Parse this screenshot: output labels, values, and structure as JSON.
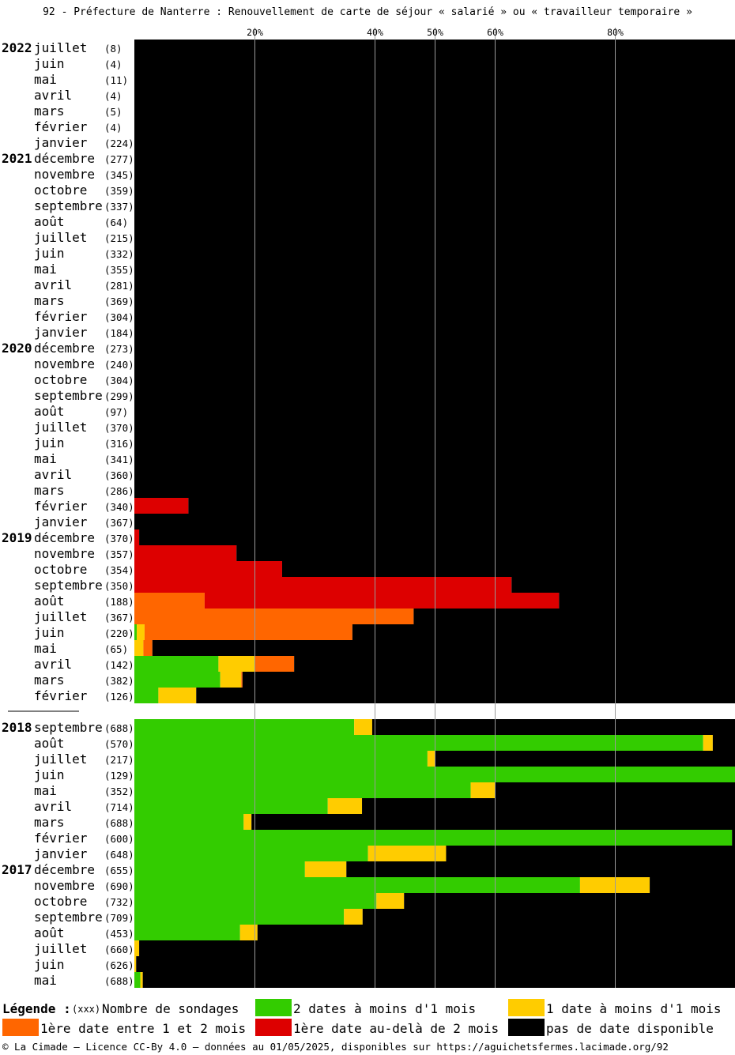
{
  "title": "92 - Préfecture de Nanterre : Renouvellement de carte de séjour « salarié » ou « travailleur temporaire »",
  "colors": {
    "green": "#33cc00",
    "yellow": "#ffcc00",
    "orange": "#ff6600",
    "red": "#dd0000",
    "black": "#000000"
  },
  "legend": {
    "title": "Légende :",
    "count_marker": "(xxx)",
    "count_label": "Nombre de sondages",
    "items": [
      {
        "color": "#33cc00",
        "label": "2 dates à moins d'1 mois"
      },
      {
        "color": "#ffcc00",
        "label": "1 date à moins d'1 mois"
      },
      {
        "color": "#ff6600",
        "label": "1ère date entre 1 et 2 mois"
      },
      {
        "color": "#dd0000",
        "label": "1ère date au-delà de 2 mois"
      },
      {
        "color": "#000000",
        "label": "pas de date disponible"
      }
    ]
  },
  "footer": "© La Cimade — Licence CC-By 4.0 — données au 01/05/2025, disponibles sur https://aguichetsfermes.lacimade.org/92",
  "chart_data": {
    "type": "bar",
    "orientation": "horizontal",
    "stacked": true,
    "x_unit": "%",
    "xlim": [
      0,
      100
    ],
    "x_ticks": [
      20,
      40,
      50,
      60,
      80
    ],
    "grid": true,
    "series_names": [
      "2 dates à moins d'1 mois",
      "1 date à moins d'1 mois",
      "1ère date entre 1 et 2 mois",
      "1ère date au-delà de 2 mois",
      "pas de date disponible"
    ],
    "groups": [
      {
        "rows": [
          {
            "year": "2022",
            "month": "juillet",
            "count": "(8)",
            "values": [
              0,
              0,
              0,
              0,
              100
            ]
          },
          {
            "year": "",
            "month": "juin",
            "count": "(4)",
            "values": [
              0,
              0,
              0,
              0,
              100
            ]
          },
          {
            "year": "",
            "month": "mai",
            "count": "(11)",
            "values": [
              0,
              0,
              0,
              0,
              100
            ]
          },
          {
            "year": "",
            "month": "avril",
            "count": "(4)",
            "values": [
              0,
              0,
              0,
              0,
              100
            ]
          },
          {
            "year": "",
            "month": "mars",
            "count": "(5)",
            "values": [
              0,
              0,
              0,
              0,
              100
            ]
          },
          {
            "year": "",
            "month": "février",
            "count": "(4)",
            "values": [
              0,
              0,
              0,
              0,
              100
            ]
          },
          {
            "year": "",
            "month": "janvier",
            "count": "(224)",
            "values": [
              0,
              0,
              0,
              0,
              100
            ]
          },
          {
            "year": "2021",
            "month": "décembre",
            "count": "(277)",
            "values": [
              0,
              0,
              0,
              0,
              100
            ]
          },
          {
            "year": "",
            "month": "novembre",
            "count": "(345)",
            "values": [
              0,
              0,
              0,
              0,
              100
            ]
          },
          {
            "year": "",
            "month": "octobre",
            "count": "(359)",
            "values": [
              0,
              0,
              0,
              0,
              100
            ]
          },
          {
            "year": "",
            "month": "septembre",
            "count": "(337)",
            "values": [
              0,
              0,
              0,
              0,
              100
            ]
          },
          {
            "year": "",
            "month": "août",
            "count": "(64)",
            "values": [
              0,
              0,
              0,
              0,
              100
            ]
          },
          {
            "year": "",
            "month": "juillet",
            "count": "(215)",
            "values": [
              0,
              0,
              0,
              0,
              100
            ]
          },
          {
            "year": "",
            "month": "juin",
            "count": "(332)",
            "values": [
              0,
              0,
              0,
              0,
              100
            ]
          },
          {
            "year": "",
            "month": "mai",
            "count": "(355)",
            "values": [
              0,
              0,
              0,
              0,
              100
            ]
          },
          {
            "year": "",
            "month": "avril",
            "count": "(281)",
            "values": [
              0,
              0,
              0,
              0,
              100
            ]
          },
          {
            "year": "",
            "month": "mars",
            "count": "(369)",
            "values": [
              0,
              0,
              0,
              0,
              100
            ]
          },
          {
            "year": "",
            "month": "février",
            "count": "(304)",
            "values": [
              0,
              0,
              0,
              0,
              100
            ]
          },
          {
            "year": "",
            "month": "janvier",
            "count": "(184)",
            "values": [
              0,
              0,
              0,
              0,
              100
            ]
          },
          {
            "year": "2020",
            "month": "décembre",
            "count": "(273)",
            "values": [
              0,
              0,
              0,
              0,
              100
            ]
          },
          {
            "year": "",
            "month": "novembre",
            "count": "(240)",
            "values": [
              0,
              0,
              0,
              0,
              100
            ]
          },
          {
            "year": "",
            "month": "octobre",
            "count": "(304)",
            "values": [
              0,
              0,
              0,
              0,
              100
            ]
          },
          {
            "year": "",
            "month": "septembre",
            "count": "(299)",
            "values": [
              0,
              0,
              0,
              0,
              100
            ]
          },
          {
            "year": "",
            "month": "août",
            "count": "(97)",
            "values": [
              0,
              0,
              0,
              0,
              100
            ]
          },
          {
            "year": "",
            "month": "juillet",
            "count": "(370)",
            "values": [
              0,
              0,
              0,
              0,
              100
            ]
          },
          {
            "year": "",
            "month": "juin",
            "count": "(316)",
            "values": [
              0,
              0,
              0,
              0,
              100
            ]
          },
          {
            "year": "",
            "month": "mai",
            "count": "(341)",
            "values": [
              0,
              0,
              0,
              0,
              100
            ]
          },
          {
            "year": "",
            "month": "avril",
            "count": "(360)",
            "values": [
              0,
              0,
              0,
              0,
              100
            ]
          },
          {
            "year": "",
            "month": "mars",
            "count": "(286)",
            "values": [
              0,
              0,
              0,
              0,
              100
            ]
          },
          {
            "year": "",
            "month": "février",
            "count": "(340)",
            "values": [
              0,
              0,
              0,
              9,
              91
            ]
          },
          {
            "year": "",
            "month": "janvier",
            "count": "(367)",
            "values": [
              0,
              0,
              0,
              0,
              100
            ]
          },
          {
            "year": "2019",
            "month": "décembre",
            "count": "(370)",
            "values": [
              0,
              0,
              0,
              0.8,
              99.2
            ]
          },
          {
            "year": "",
            "month": "novembre",
            "count": "(357)",
            "values": [
              0,
              0,
              0,
              17,
              83
            ]
          },
          {
            "year": "",
            "month": "octobre",
            "count": "(354)",
            "values": [
              0,
              0,
              0,
              24.6,
              75.4
            ]
          },
          {
            "year": "",
            "month": "septembre",
            "count": "(350)",
            "values": [
              0,
              0,
              0,
              62.8,
              37.2
            ]
          },
          {
            "year": "",
            "month": "août",
            "count": "(188)",
            "values": [
              0,
              0,
              11.7,
              59,
              29.3
            ]
          },
          {
            "year": "",
            "month": "juillet",
            "count": "(367)",
            "values": [
              0,
              0,
              46.5,
              0,
              53.5
            ]
          },
          {
            "year": "",
            "month": "juin",
            "count": "(220)",
            "values": [
              0.4,
              1.3,
              34.6,
              0,
              63.7
            ]
          },
          {
            "year": "",
            "month": "mai",
            "count": "(65)",
            "values": [
              0,
              1.5,
              1.5,
              0,
              97
            ]
          },
          {
            "year": "",
            "month": "avril",
            "count": "(142)",
            "values": [
              14,
              6,
              6.6,
              0,
              73.4
            ]
          },
          {
            "year": "",
            "month": "mars",
            "count": "(382)",
            "values": [
              14.3,
              3.5,
              0.2,
              0,
              82
            ]
          },
          {
            "year": "",
            "month": "février",
            "count": "(126)",
            "values": [
              4,
              6.3,
              0,
              0,
              89.7
            ]
          }
        ]
      },
      {
        "rows": [
          {
            "year": "2018",
            "month": "septembre",
            "count": "(688)",
            "values": [
              36.6,
              3,
              0,
              0,
              60.4
            ]
          },
          {
            "year": "",
            "month": "août",
            "count": "(570)",
            "values": [
              94.7,
              1.6,
              0,
              0,
              3.7
            ]
          },
          {
            "year": "",
            "month": "juillet",
            "count": "(217)",
            "values": [
              48.8,
              1.3,
              0,
              0,
              49.9
            ]
          },
          {
            "year": "",
            "month": "juin",
            "count": "(129)",
            "values": [
              100,
              0,
              0,
              0,
              0
            ]
          },
          {
            "year": "",
            "month": "mai",
            "count": "(352)",
            "values": [
              56,
              4,
              0,
              0,
              40
            ]
          },
          {
            "year": "",
            "month": "avril",
            "count": "(714)",
            "values": [
              32.2,
              5.7,
              0,
              0,
              62.1
            ]
          },
          {
            "year": "",
            "month": "mars",
            "count": "(688)",
            "values": [
              18.2,
              1.3,
              0,
              0,
              80.5
            ]
          },
          {
            "year": "",
            "month": "février",
            "count": "(600)",
            "values": [
              99.5,
              0,
              0,
              0,
              0.5
            ]
          },
          {
            "year": "",
            "month": "janvier",
            "count": "(648)",
            "values": [
              38.9,
              13,
              0,
              0,
              48.1
            ]
          },
          {
            "year": "2017",
            "month": "décembre",
            "count": "(655)",
            "values": [
              28.4,
              6.9,
              0,
              0,
              64.7
            ]
          },
          {
            "year": "",
            "month": "novembre",
            "count": "(690)",
            "values": [
              74.2,
              11.6,
              0,
              0,
              14.2
            ]
          },
          {
            "year": "",
            "month": "octobre",
            "count": "(732)",
            "values": [
              40.3,
              4.6,
              0,
              0,
              55.1
            ]
          },
          {
            "year": "",
            "month": "septembre",
            "count": "(709)",
            "values": [
              34.9,
              3.1,
              0,
              0,
              62
            ]
          },
          {
            "year": "",
            "month": "août",
            "count": "(453)",
            "values": [
              17.6,
              2.9,
              0,
              0,
              79.5
            ]
          },
          {
            "year": "",
            "month": "juillet",
            "count": "(660)",
            "values": [
              0,
              0.8,
              0,
              0,
              99.2
            ]
          },
          {
            "year": "",
            "month": "juin",
            "count": "(626)",
            "values": [
              0,
              0.3,
              0,
              0,
              99.7
            ]
          },
          {
            "year": "",
            "month": "mai",
            "count": "(688)",
            "values": [
              1,
              0.4,
              0,
              0,
              98.6
            ]
          }
        ]
      }
    ]
  }
}
